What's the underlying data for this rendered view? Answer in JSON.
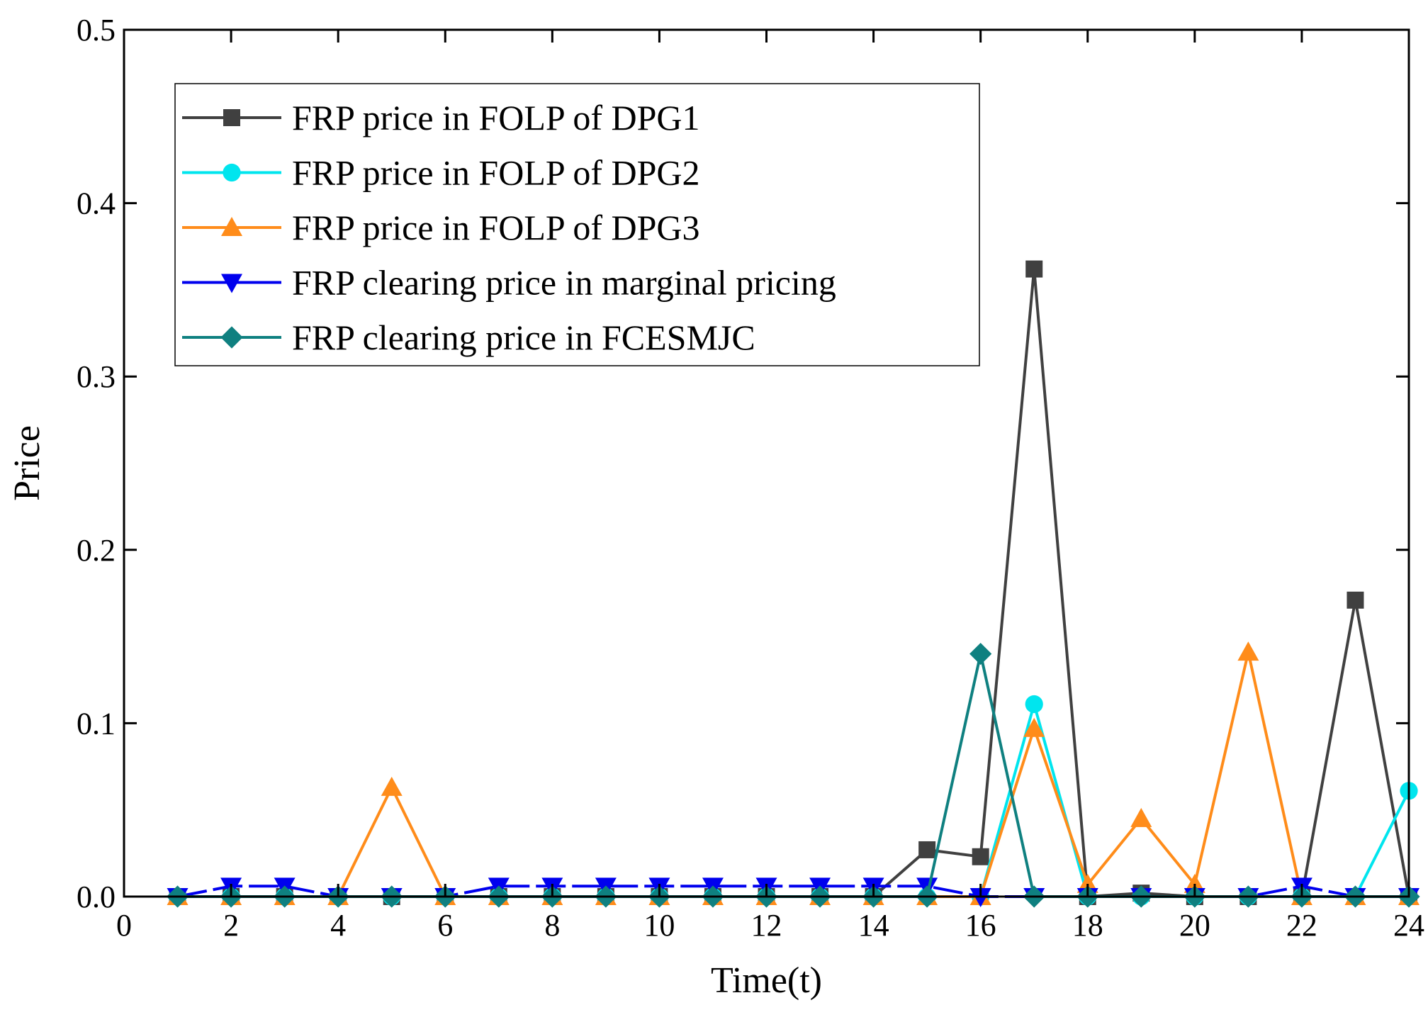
{
  "chart_data": {
    "type": "line",
    "title": "",
    "xlabel": "Time(t)",
    "ylabel": "Price",
    "xlim": [
      0,
      24
    ],
    "ylim": [
      0,
      0.5
    ],
    "xticks": [
      0,
      2,
      4,
      6,
      8,
      10,
      12,
      14,
      16,
      18,
      20,
      22,
      24
    ],
    "xtick_labels": [
      "0",
      "2",
      "4",
      "6",
      "8",
      "10",
      "12",
      "14",
      "16",
      "18",
      "20",
      "22",
      "24"
    ],
    "yticks": [
      0,
      0.1,
      0.2,
      0.3,
      0.4,
      0.5
    ],
    "ytick_labels": [
      "0.0",
      "0.1",
      "0.2",
      "0.3",
      "0.4",
      "0.5"
    ],
    "grid": false,
    "legend_position": "top-left",
    "x": [
      1,
      2,
      3,
      4,
      5,
      6,
      7,
      8,
      9,
      10,
      11,
      12,
      13,
      14,
      15,
      16,
      17,
      18,
      19,
      20,
      21,
      22,
      23,
      24
    ],
    "series": [
      {
        "name": "FRP price in FOLP of DPG1",
        "color": "#404040",
        "marker": "square",
        "values": [
          0,
          0,
          0,
          0,
          0,
          0,
          0,
          0,
          0,
          0,
          0,
          0,
          0,
          0,
          0.027,
          0.023,
          0.362,
          0,
          0.002,
          0,
          0,
          0,
          0.171,
          0
        ]
      },
      {
        "name": "FRP price in FOLP of DPG2",
        "color": "#00e5ee",
        "marker": "circle",
        "values": [
          0,
          0,
          0,
          0,
          0,
          0,
          0,
          0,
          0,
          0,
          0,
          0,
          0,
          0,
          0,
          0,
          0.111,
          0,
          0,
          0,
          0,
          0,
          0,
          0.061
        ]
      },
      {
        "name": "FRP price in FOLP of DPG3",
        "color": "#ff8c1a",
        "marker": "triangle-up",
        "values": [
          0,
          0,
          0,
          0,
          0.063,
          0,
          0,
          0,
          0,
          0,
          0,
          0,
          0,
          0,
          0,
          0,
          0.097,
          0.007,
          0.045,
          0.007,
          0.141,
          0,
          0,
          0
        ]
      },
      {
        "name": "FRP clearing price in marginal pricing",
        "color": "#0000ee",
        "marker": "triangle-down",
        "values": [
          0,
          0.006,
          0.006,
          0,
          0,
          0,
          0.006,
          0.006,
          0.006,
          0.006,
          0.006,
          0.006,
          0.006,
          0.006,
          0.006,
          0,
          0,
          0,
          0,
          0,
          0,
          0.006,
          0,
          0
        ]
      },
      {
        "name": "FRP clearing price in FCESMJC",
        "color": "#0f8080",
        "marker": "diamond",
        "values": [
          0,
          0,
          0,
          0,
          0,
          0,
          0,
          0,
          0,
          0,
          0,
          0,
          0,
          0,
          0,
          0.14,
          0,
          0,
          0,
          0,
          0,
          0,
          0,
          0
        ]
      }
    ]
  }
}
